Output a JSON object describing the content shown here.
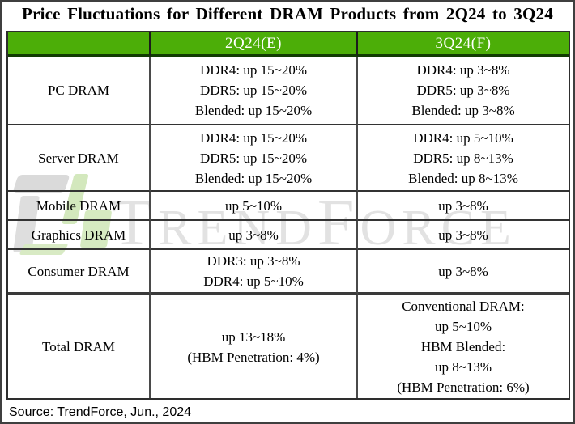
{
  "title": "Price Fluctuations for Different DRAM Products from 2Q24 to 3Q24",
  "source_note": "Source: TrendForce, Jun., 2024",
  "watermark": {
    "part1": "T",
    "part2": "REND",
    "part3": "F",
    "part4": "ORCE"
  },
  "colors": {
    "header_green": "#4cae08",
    "header_bottom_border": "#113c02",
    "header_text": "#ffffff",
    "table_border": "#2e2e2e",
    "watermark_gray": "#e2e2e2",
    "watermark_logo_green": "#d6eac1",
    "watermark_logo_gray": "#dadada"
  },
  "chart_data": {
    "type": "table",
    "title": "Price Fluctuations for Different DRAM Products from 2Q24 to 3Q24",
    "columns": [
      "",
      "2Q24(E)",
      "3Q24(F)"
    ],
    "rows": [
      {
        "product": "PC DRAM",
        "q2_lines": [
          "DDR4: up 15~20%",
          "DDR5: up 15~20%",
          "Blended: up 15~20%"
        ],
        "q3_lines": [
          "DDR4: up 3~8%",
          "DDR5: up 3~8%",
          "Blended: up 3~8%"
        ]
      },
      {
        "product": "Server DRAM",
        "q2_lines": [
          "DDR4: up 15~20%",
          "DDR5: up 15~20%",
          "Blended: up 15~20%"
        ],
        "q3_lines": [
          "DDR4: up 5~10%",
          "DDR5: up 8~13%",
          "Blended: up 8~13%"
        ]
      },
      {
        "product": "Mobile DRAM",
        "q2_lines": [
          "up 5~10%"
        ],
        "q3_lines": [
          "up 3~8%"
        ]
      },
      {
        "product": "Graphics DRAM",
        "q2_lines": [
          "up 3~8%"
        ],
        "q3_lines": [
          "up 3~8%"
        ]
      },
      {
        "product": "Consumer DRAM",
        "q2_lines": [
          "DDR3: up 3~8%",
          "DDR4: up 5~10%"
        ],
        "q3_lines": [
          "up 3~8%"
        ]
      },
      {
        "product": "Total DRAM",
        "q2_lines": [
          "up 13~18%",
          "(HBM Penetration: 4%)"
        ],
        "q3_lines": [
          "Conventional DRAM:",
          "up 5~10%",
          "HBM Blended:",
          "up 8~13%",
          "(HBM Penetration: 6%)"
        ]
      }
    ]
  }
}
